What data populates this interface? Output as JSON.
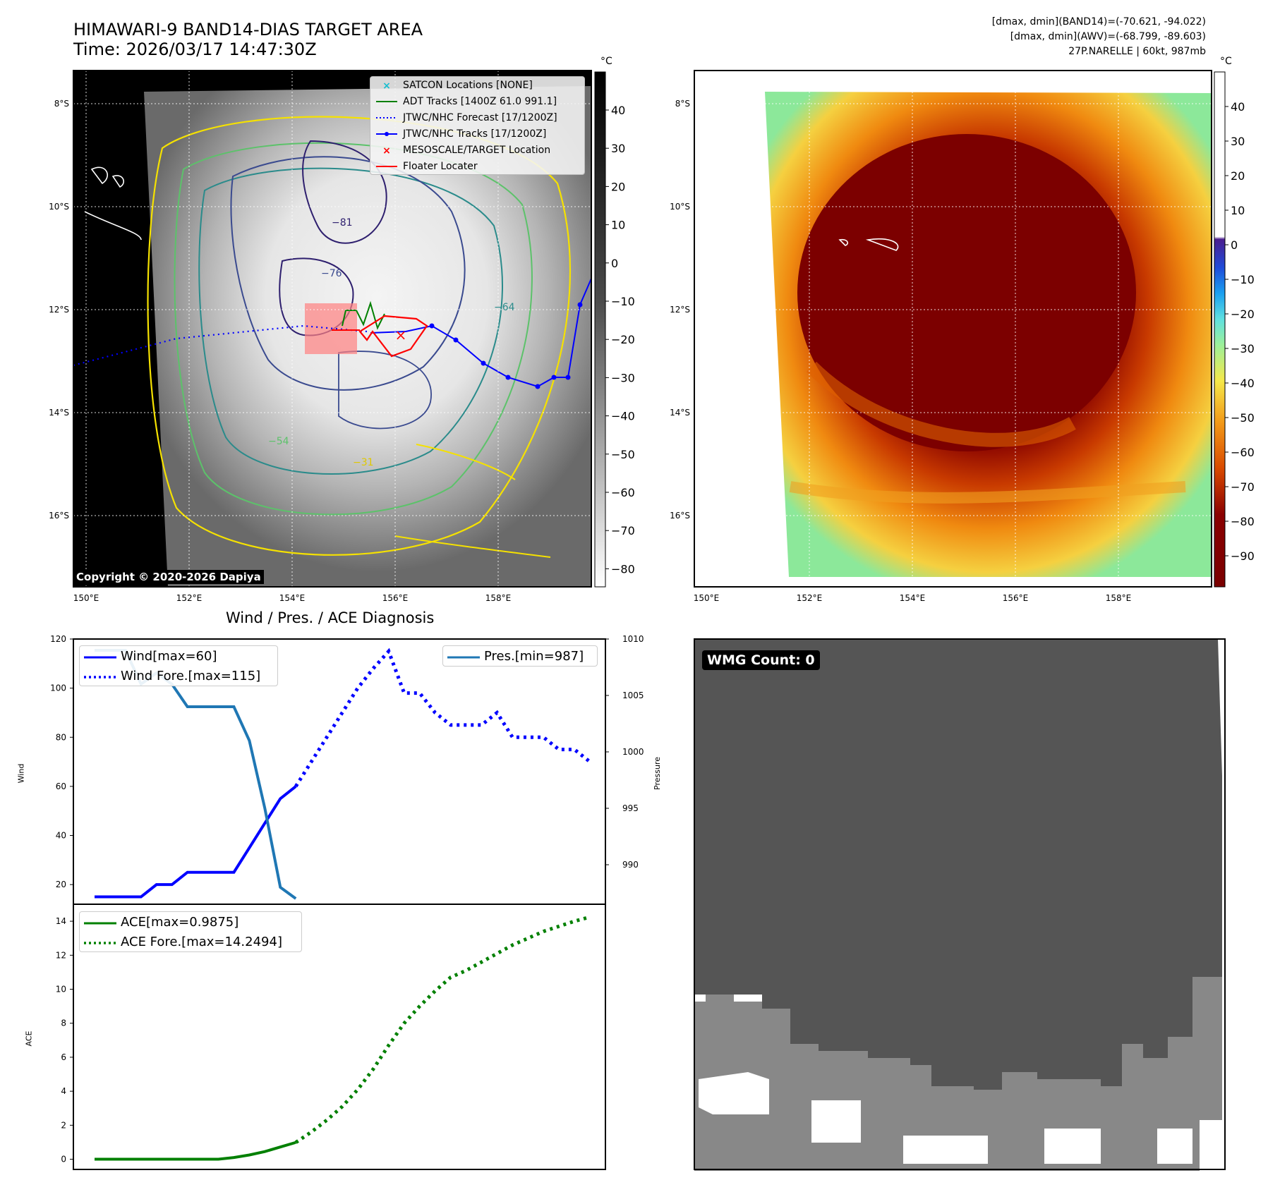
{
  "header": {
    "title_line1": "HIMAWARI-9 BAND14-DIAS TARGET AREA",
    "title_line2": "Time: 2026/03/17 14:47:30Z",
    "info_line1": "[dmax, dmin](BAND14)=(-70.621, -94.022)",
    "info_line2": "[dmax, dmin](AWV)=(-68.799, -89.603)",
    "info_line3": "27P.NARELLE | 60kt, 987mb"
  },
  "colorbar_unit": "°C",
  "copyright": "Copyright © 2020-2026 Dapiya",
  "lat_labels": [
    "8°S",
    "10°S",
    "12°S",
    "14°S",
    "16°S"
  ],
  "lon_labels": [
    "150°E",
    "152°E",
    "154°E",
    "156°E",
    "158°E"
  ],
  "colorbar_gray_ticks": [
    "40",
    "30",
    "20",
    "10",
    "0",
    "−10",
    "−20",
    "−30",
    "−40",
    "−50",
    "−60",
    "−70",
    "−80"
  ],
  "colorbar_color_ticks": [
    "40",
    "30",
    "20",
    "10",
    "0",
    "−10",
    "−20",
    "−30",
    "−40",
    "−50",
    "−60",
    "−70",
    "−80",
    "−90"
  ],
  "contour_labels": [
    "−31",
    "−54",
    "−64",
    "−76",
    "−81"
  ],
  "map_legend": [
    {
      "label": "SATCON Locations [NONE]",
      "color": "#17becf",
      "style": "x"
    },
    {
      "label": "ADT Tracks [1400Z 61.0 991.1]",
      "color": "#008000",
      "style": "line"
    },
    {
      "label": "JTWC/NHC Forecast [17/1200Z]",
      "color": "#0000ff",
      "style": "dot"
    },
    {
      "label": "JTWC/NHC Tracks [17/1200Z]",
      "color": "#0000ff",
      "style": "linemarker"
    },
    {
      "label": "MESOSCALE/TARGET Location",
      "color": "#ff0000",
      "style": "x"
    },
    {
      "label": "Floater Locater",
      "color": "#ff0000",
      "style": "line"
    }
  ],
  "wmg_label": "WMG Count: 0",
  "chart_data": [
    {
      "type": "line",
      "title": "Wind / Pres. / ACE Diagnosis",
      "ylabel": "Wind",
      "ylabel2": "Pressure",
      "ylim": [
        12,
        120
      ],
      "y2lim": [
        986.5,
        1010
      ],
      "yticks": [
        20,
        40,
        60,
        80,
        100,
        120
      ],
      "y2ticks": [
        990,
        995,
        1000,
        1005,
        1010
      ],
      "x": [
        0,
        1,
        2,
        3,
        4,
        5,
        6,
        7,
        8,
        9,
        10,
        11,
        12,
        13,
        14,
        15,
        16,
        17,
        18,
        19,
        20,
        21,
        22,
        23,
        24,
        25,
        26,
        27,
        28,
        29,
        30,
        31,
        32
      ],
      "series": [
        {
          "name": "Wind[max=60]",
          "axis": "left",
          "color": "#0000ff",
          "style": "solid",
          "x": [
            0,
            1,
            2,
            3,
            4,
            5,
            6,
            7,
            8,
            9,
            10,
            11,
            12,
            13
          ],
          "values": [
            15,
            15,
            15,
            15,
            20,
            20,
            25,
            25,
            25,
            25,
            35,
            45,
            55,
            60
          ]
        },
        {
          "name": "Wind Fore.[max=115]",
          "axis": "left",
          "color": "#0000ff",
          "style": "dotted",
          "x": [
            13,
            14,
            15,
            16,
            17,
            18,
            19,
            20,
            21,
            22,
            23,
            24,
            25,
            26,
            27,
            28,
            29,
            30,
            31,
            32
          ],
          "values": [
            60,
            70,
            80,
            90,
            100,
            108,
            115,
            98,
            98,
            90,
            85,
            85,
            85,
            90,
            80,
            80,
            80,
            75,
            75,
            70
          ]
        },
        {
          "name": "Pres.[min=987]",
          "axis": "right",
          "color": "#1f77b4",
          "style": "solid",
          "x": [
            0,
            1,
            2,
            3,
            4,
            5,
            6,
            7,
            8,
            9,
            10,
            11,
            12,
            13
          ],
          "values": [
            1009,
            1009,
            1009,
            1006,
            1007,
            1006,
            1004,
            1004,
            1004,
            1004,
            1001,
            995,
            988,
            987
          ]
        }
      ]
    },
    {
      "type": "line",
      "ylabel": "ACE",
      "ylim": [
        -0.6,
        15
      ],
      "yticks": [
        0,
        2,
        4,
        6,
        8,
        10,
        12,
        14
      ],
      "series": [
        {
          "name": "ACE[max=0.9875]",
          "color": "#008000",
          "style": "solid",
          "x": [
            0,
            1,
            2,
            3,
            4,
            5,
            6,
            7,
            8,
            9,
            10,
            11,
            12,
            13
          ],
          "values": [
            0,
            0,
            0,
            0,
            0,
            0,
            0,
            0,
            0,
            0.1,
            0.25,
            0.45,
            0.72,
            0.9875
          ]
        },
        {
          "name": "ACE Fore.[max=14.2494]",
          "color": "#008000",
          "style": "dotted",
          "x": [
            13,
            14,
            15,
            16,
            17,
            18,
            19,
            20,
            21,
            22,
            23,
            24,
            25,
            26,
            27,
            28,
            29,
            30,
            31,
            32
          ],
          "values": [
            0.9875,
            1.6,
            2.3,
            3.1,
            4.1,
            5.3,
            6.7,
            8.0,
            9.0,
            9.9,
            10.7,
            11.1,
            11.6,
            12.1,
            12.6,
            13.0,
            13.4,
            13.7,
            14.0,
            14.2494
          ]
        }
      ]
    }
  ]
}
